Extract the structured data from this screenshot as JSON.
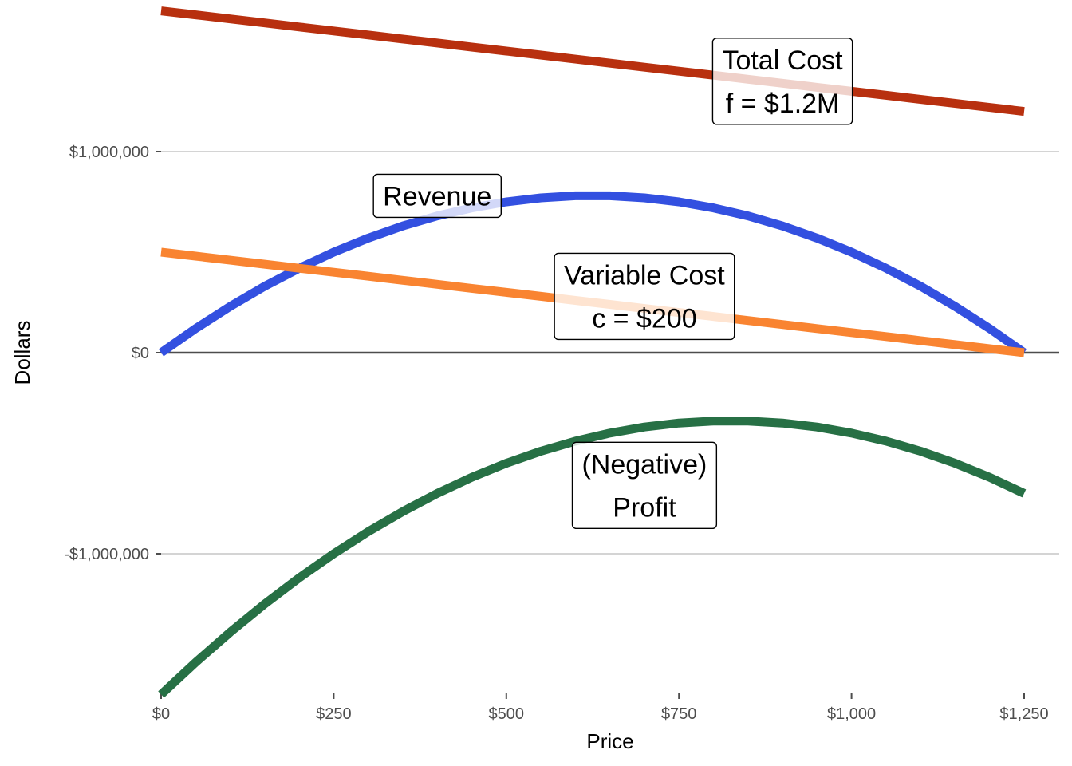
{
  "chart_data": {
    "type": "line",
    "xlabel": "Price",
    "ylabel": "Dollars",
    "xlim": [
      0,
      1250
    ],
    "ylim": [
      -1700000,
      1700000
    ],
    "x_ticks": [
      0,
      250,
      500,
      750,
      1000,
      1250
    ],
    "x_tick_labels": [
      "$0",
      "$250",
      "$500",
      "$750",
      "$1,000",
      "$1,250"
    ],
    "y_ticks": [
      1000000,
      0,
      -1000000
    ],
    "y_tick_labels": [
      "$1,000,000",
      "$0",
      "-$1,000,000"
    ],
    "grid": "horizontal",
    "series": [
      {
        "name": "Total Cost",
        "color": "#b8300f",
        "x": [
          0,
          50,
          100,
          150,
          200,
          250,
          300,
          350,
          400,
          450,
          500,
          550,
          600,
          650,
          700,
          750,
          800,
          850,
          900,
          950,
          1000,
          1050,
          1100,
          1150,
          1200,
          1250
        ],
        "values": [
          1700000,
          1680000,
          1660000,
          1640000,
          1620000,
          1600000,
          1580000,
          1560000,
          1540000,
          1520000,
          1500000,
          1480000,
          1460000,
          1440000,
          1420000,
          1400000,
          1380000,
          1360000,
          1340000,
          1320000,
          1300000,
          1280000,
          1260000,
          1240000,
          1220000,
          1200000
        ]
      },
      {
        "name": "Revenue",
        "color": "#3350e0",
        "x": [
          0,
          50,
          100,
          150,
          200,
          250,
          300,
          350,
          400,
          450,
          500,
          550,
          600,
          650,
          700,
          750,
          800,
          850,
          900,
          950,
          1000,
          1050,
          1100,
          1150,
          1200,
          1250
        ],
        "values": [
          0,
          120000,
          230000,
          330000,
          420000,
          500000,
          570000,
          630000,
          680000,
          720000,
          750000,
          770000,
          780000,
          780000,
          770000,
          750000,
          720000,
          680000,
          630000,
          570000,
          500000,
          420000,
          330000,
          230000,
          120000,
          0
        ]
      },
      {
        "name": "Variable Cost",
        "color": "#f98431",
        "x": [
          0,
          50,
          100,
          150,
          200,
          250,
          300,
          350,
          400,
          450,
          500,
          550,
          600,
          650,
          700,
          750,
          800,
          850,
          900,
          950,
          1000,
          1050,
          1100,
          1150,
          1200,
          1250
        ],
        "values": [
          500000,
          480000,
          460000,
          440000,
          420000,
          400000,
          380000,
          360000,
          340000,
          320000,
          300000,
          280000,
          260000,
          240000,
          220000,
          200000,
          180000,
          160000,
          140000,
          120000,
          100000,
          80000,
          60000,
          40000,
          20000,
          0
        ]
      },
      {
        "name": "(Negative) Profit",
        "color": "#277045",
        "x": [
          0,
          50,
          100,
          150,
          200,
          250,
          300,
          350,
          400,
          450,
          500,
          550,
          600,
          650,
          700,
          750,
          800,
          850,
          900,
          950,
          1000,
          1050,
          1100,
          1150,
          1200,
          1250
        ],
        "values": [
          -1700000,
          -1540000,
          -1390000,
          -1250000,
          -1120000,
          -1000000,
          -890000,
          -790000,
          -700000,
          -620000,
          -550000,
          -490000,
          -440000,
          -400000,
          -370000,
          -350000,
          -340000,
          -340000,
          -350000,
          -370000,
          -400000,
          -440000,
          -490000,
          -550000,
          -620000,
          -700000
        ]
      }
    ],
    "annotations": [
      {
        "lines": [
          "Total Cost",
          "f = $1.2M"
        ],
        "x": 900,
        "y": 1350000
      },
      {
        "lines": [
          "Revenue"
        ],
        "x": 400,
        "y": 780000
      },
      {
        "lines": [
          "Variable Cost",
          "c = $200"
        ],
        "x": 700,
        "y": 280000
      },
      {
        "lines": [
          "(Negative)",
          "Profit"
        ],
        "x": 700,
        "y": -660000
      }
    ]
  }
}
